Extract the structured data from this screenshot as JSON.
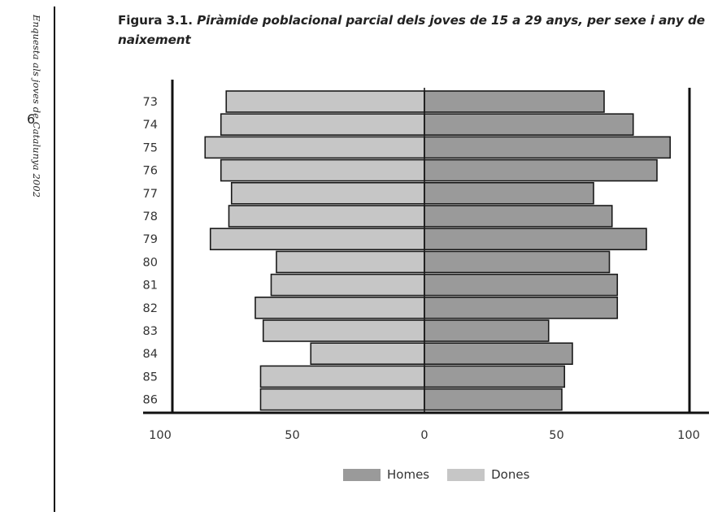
{
  "page": {
    "side_text": "Enquesta als joves de Catalunya 2002",
    "page_number": "6"
  },
  "title": {
    "prefix": "Figura 3.1.",
    "italic": "Piràmide poblacional parcial dels joves de 15 a 29 anys, per sexe i any de naixement"
  },
  "chart_data": {
    "type": "bar",
    "orientation": "population-pyramid",
    "title": "Figura 3.1. Piràmide poblacional parcial dels joves de 15 a 29 anys, per sexe i any de naixement",
    "categories": [
      "73",
      "74",
      "75",
      "76",
      "77",
      "78",
      "79",
      "80",
      "81",
      "82",
      "83",
      "84",
      "85",
      "86"
    ],
    "series": [
      {
        "name": "Homes",
        "side": "right",
        "color": "#9a9a9a",
        "values": [
          68,
          79,
          93,
          88,
          64,
          71,
          84,
          70,
          73,
          73,
          47,
          56,
          53,
          52
        ]
      },
      {
        "name": "Dones",
        "side": "left",
        "color": "#c6c6c6",
        "values": [
          75,
          77,
          83,
          77,
          73,
          74,
          81,
          56,
          58,
          64,
          61,
          43,
          62,
          62
        ]
      }
    ],
    "x_ticks": [
      "100",
      "50",
      "0",
      "50",
      "100"
    ],
    "xlim": [
      -100,
      100
    ],
    "legend": [
      "Homes",
      "Dones"
    ],
    "legend_position": "bottom-center"
  }
}
